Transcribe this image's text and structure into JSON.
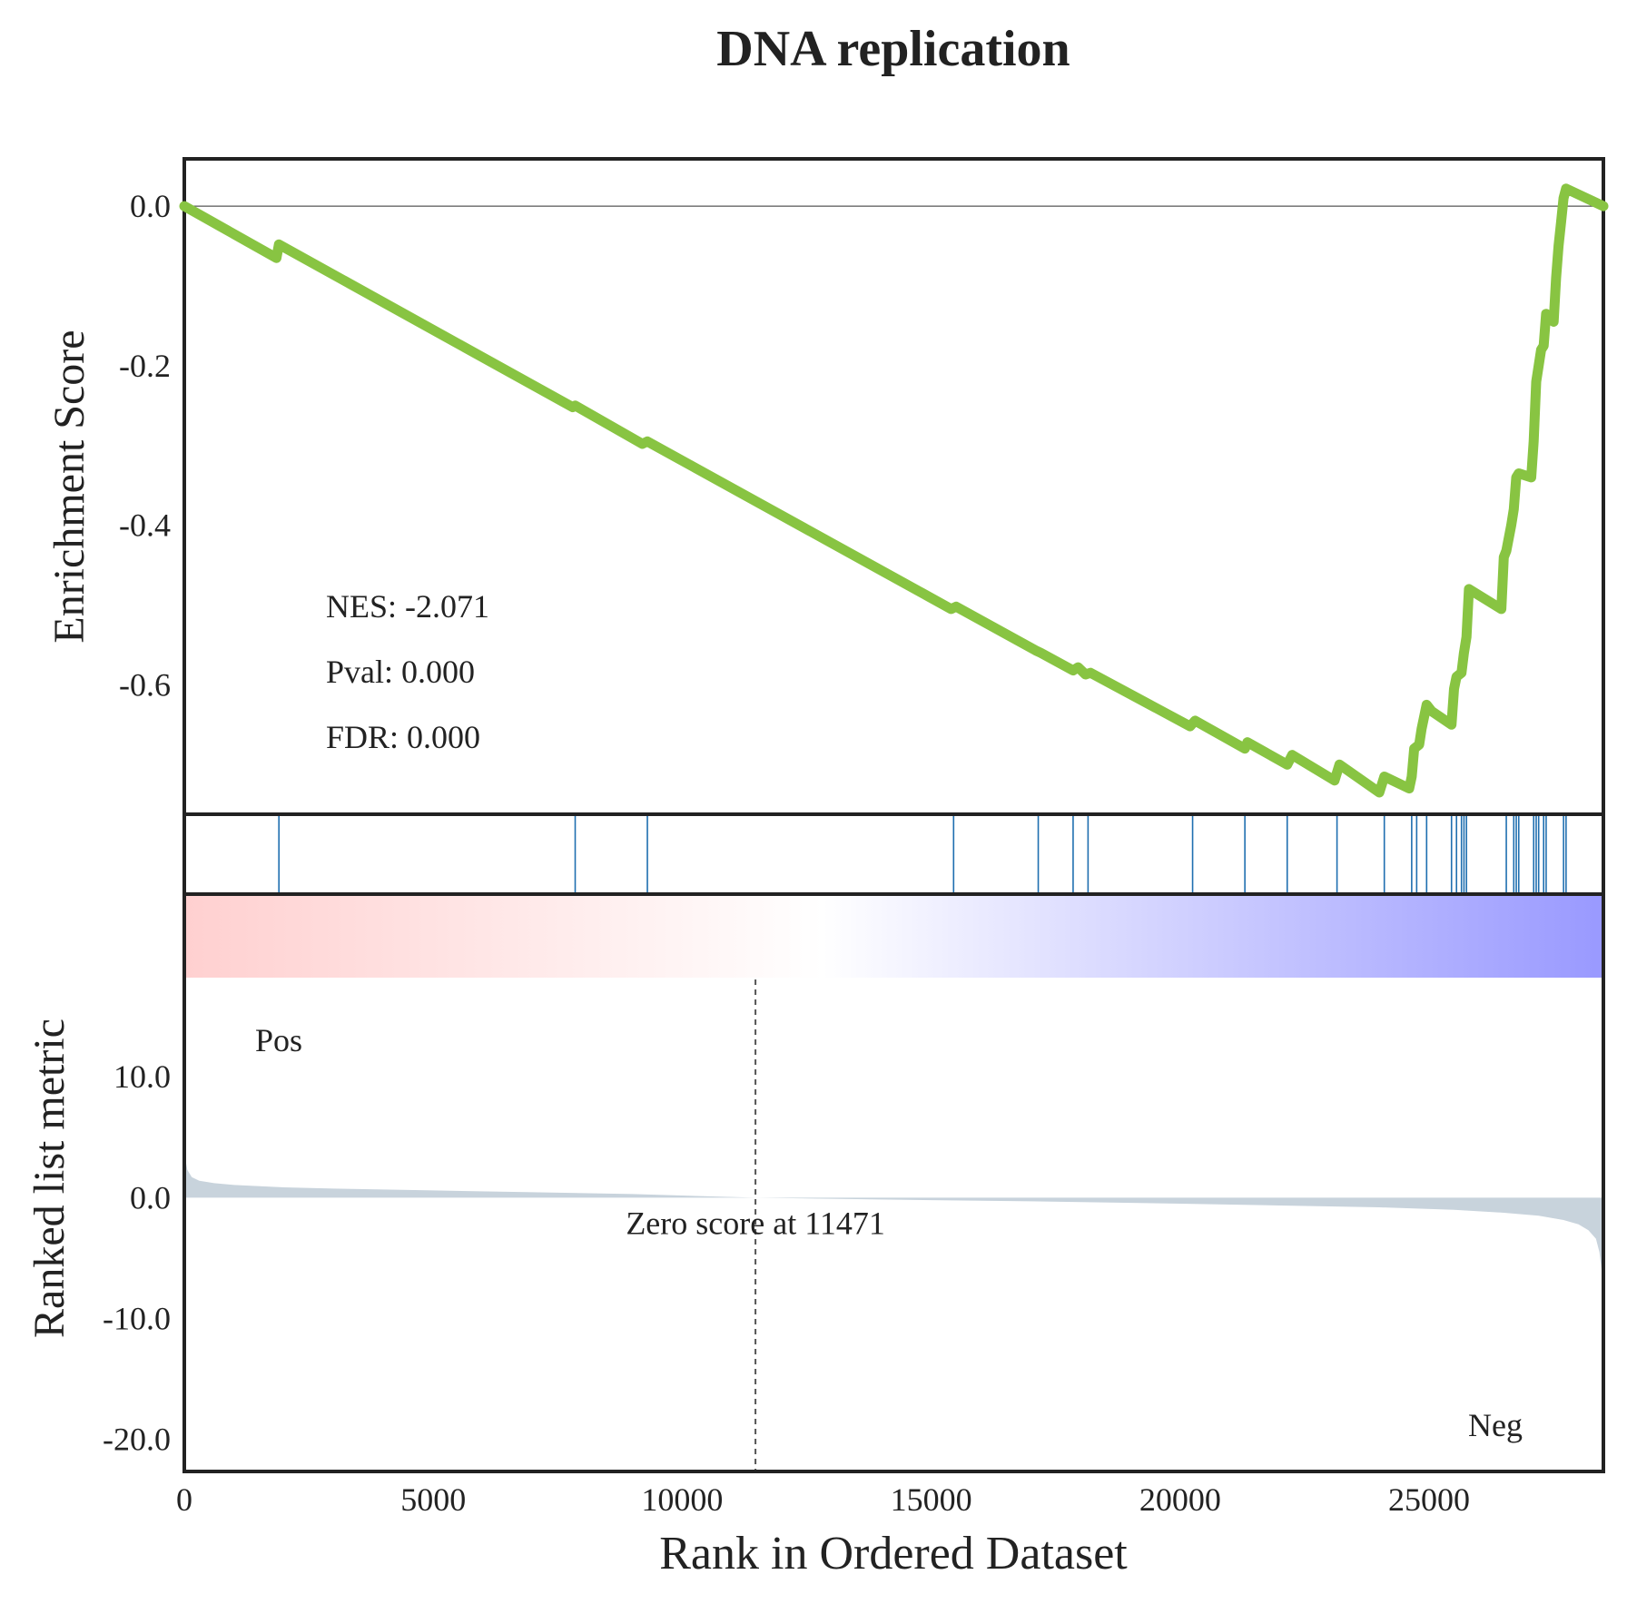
{
  "chart_data": {
    "type": "line",
    "title": "DNA replication",
    "colors": {
      "es_line": "#88c442",
      "hits": "#1f6fb0",
      "metric_fill": "#c8d3dc",
      "pos_label": "#ff0000",
      "neg_label": "#0000ff",
      "frame": "#222222",
      "zero_line": "#555555"
    },
    "grid": false,
    "xlabel": "Rank in Ordered Dataset",
    "xlim": [
      0,
      28500
    ],
    "xticks": [
      0,
      5000,
      10000,
      15000,
      20000,
      25000
    ],
    "xtick_labels": [
      "0",
      "5000",
      "10000",
      "15000",
      "20000",
      "25000"
    ],
    "es_panel": {
      "ylabel": "Enrichment Score",
      "ylim": [
        -0.76,
        0.057
      ],
      "yticks": [
        0.0,
        -0.2,
        -0.4,
        -0.6
      ],
      "ytick_labels": [
        "0.0",
        "-0.2",
        "-0.4",
        "-0.6"
      ],
      "stats": [
        "NES: -2.071",
        "Pval: 0.000",
        "FDR: 0.000"
      ],
      "series": [
        {
          "x": [
            0,
            1850,
            1900,
            7800,
            7850,
            9200,
            9300,
            15400,
            15500,
            17100,
            17200,
            17850,
            17950,
            18100,
            18200,
            20200,
            20300,
            21300,
            21350,
            22150,
            22250,
            23100,
            23200,
            24000,
            24100,
            24600,
            24650,
            24700,
            24800,
            24850,
            24950,
            25050,
            25450,
            25500,
            25550,
            25650,
            25700,
            25750,
            25800,
            26450,
            26500,
            26550,
            26650,
            26700,
            26750,
            26800,
            27050,
            27100,
            27150,
            27250,
            27300,
            27350,
            27400,
            27500,
            27550,
            27600,
            27650,
            27700,
            27750,
            28500
          ],
          "y": [
            0.0,
            -0.065,
            -0.048,
            -0.252,
            -0.25,
            -0.298,
            -0.295,
            -0.505,
            -0.502,
            -0.557,
            -0.56,
            -0.582,
            -0.578,
            -0.587,
            -0.585,
            -0.652,
            -0.645,
            -0.68,
            -0.672,
            -0.7,
            -0.688,
            -0.72,
            -0.7,
            -0.735,
            -0.715,
            -0.73,
            -0.715,
            -0.68,
            -0.675,
            -0.655,
            -0.625,
            -0.633,
            -0.65,
            -0.605,
            -0.59,
            -0.585,
            -0.56,
            -0.54,
            -0.48,
            -0.505,
            -0.44,
            -0.432,
            -0.4,
            -0.38,
            -0.34,
            -0.335,
            -0.34,
            -0.295,
            -0.22,
            -0.18,
            -0.175,
            -0.135,
            -0.14,
            -0.145,
            -0.09,
            -0.05,
            -0.02,
            0.01,
            0.022,
            0.0
          ]
        }
      ]
    },
    "hits": [
      1900,
      7850,
      9300,
      15450,
      17150,
      17850,
      18150,
      20250,
      21300,
      22150,
      23150,
      24100,
      24650,
      24750,
      24950,
      25450,
      25550,
      25650,
      25700,
      25750,
      26550,
      26700,
      26750,
      26800,
      27100,
      27150,
      27200,
      27300,
      27350,
      27700,
      27750
    ],
    "heatmap": {
      "gradient_from": "#ffd0d0",
      "gradient_mid": "#ffffff",
      "gradient_to": "#9999ff"
    },
    "metric_panel": {
      "ylabel": "Ranked list metric",
      "ylim": [
        -22.5,
        18.2
      ],
      "yticks": [
        10.0,
        0.0,
        -10.0,
        -20.0
      ],
      "ytick_labels": [
        "10.0",
        "0.0",
        "-10.0",
        "-20.0"
      ],
      "pos_label": "Pos",
      "neg_label": "Neg",
      "zero_cross_x": 11471,
      "zero_cross_label": "Zero score at 11471",
      "series": [
        {
          "x": [
            0,
            20,
            60,
            150,
            300,
            600,
            1000,
            2000,
            3000,
            5000,
            7000,
            9000,
            11471,
            14000,
            17000,
            20000,
            22000,
            24000,
            25500,
            26500,
            27200,
            27700,
            28000,
            28200,
            28350,
            28420,
            28470,
            28500
          ],
          "y": [
            4.2,
            3.2,
            2.3,
            1.7,
            1.4,
            1.2,
            1.05,
            0.85,
            0.75,
            0.6,
            0.45,
            0.3,
            0.0,
            -0.15,
            -0.3,
            -0.5,
            -0.65,
            -0.8,
            -1.0,
            -1.25,
            -1.5,
            -1.85,
            -2.2,
            -2.7,
            -3.4,
            -4.5,
            -6.2,
            -8.0
          ]
        }
      ]
    }
  }
}
